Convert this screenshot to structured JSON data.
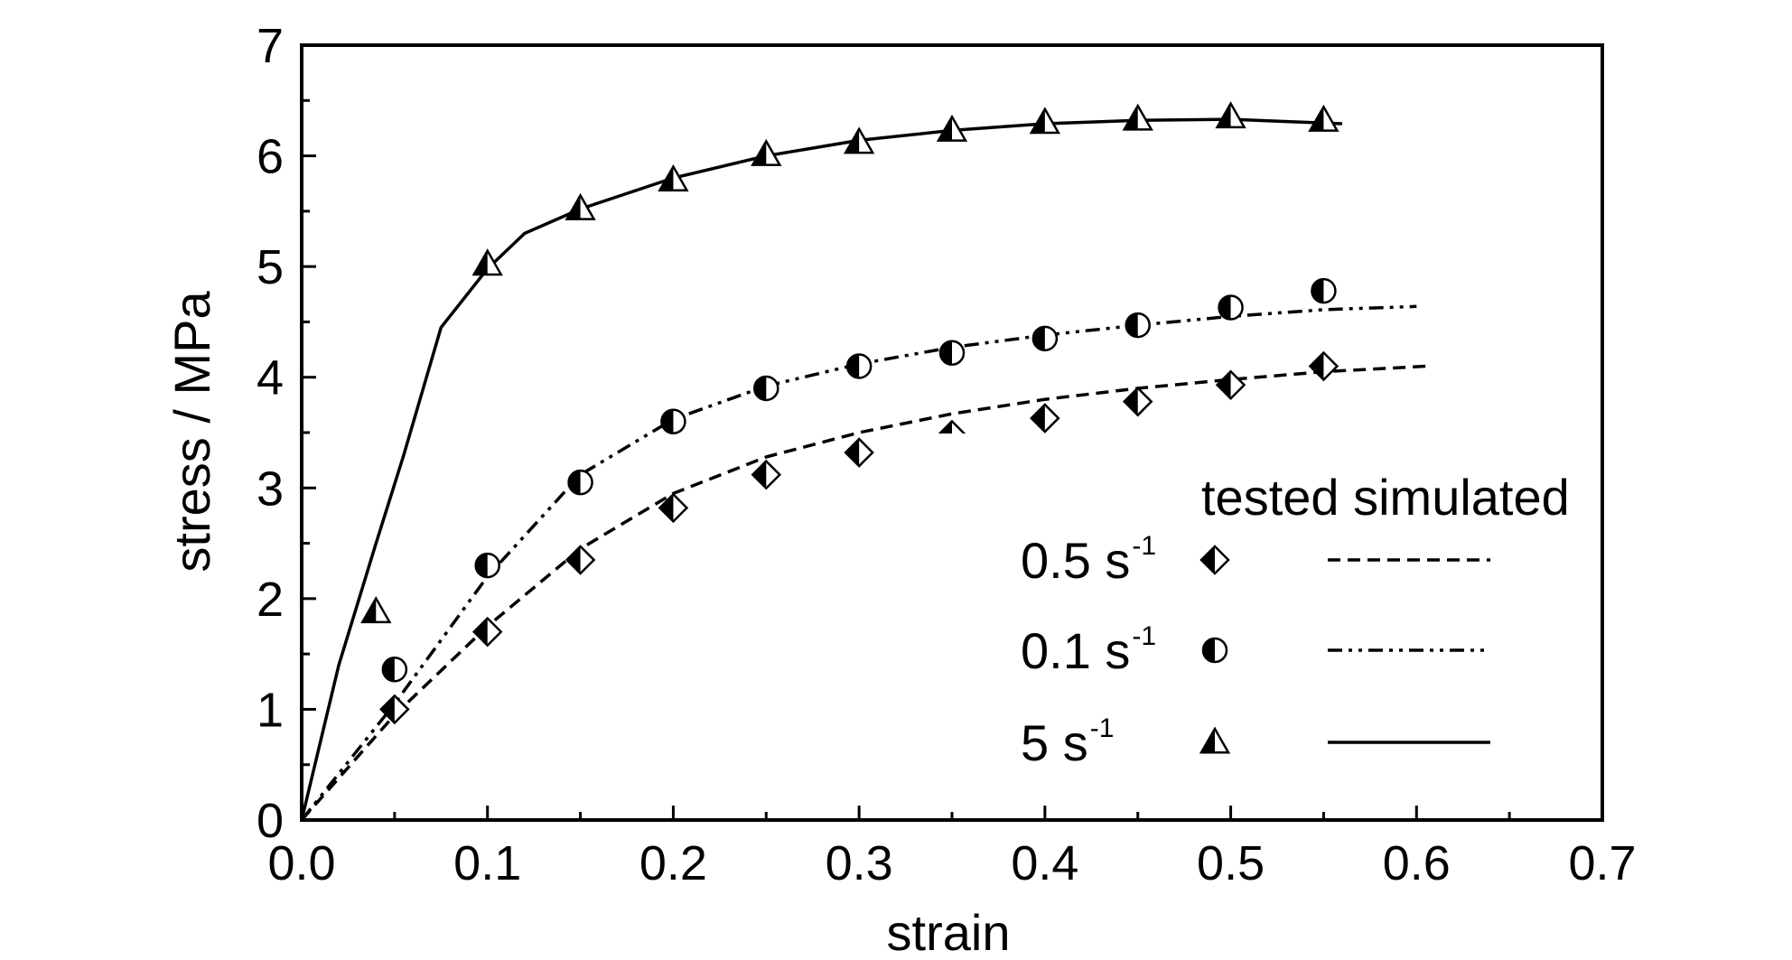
{
  "chart_data": {
    "type": "line",
    "xlabel": "strain",
    "ylabel": "stress / MPa",
    "xlim": [
      0,
      0.7
    ],
    "ylim": [
      0,
      7
    ],
    "x_ticks": [
      "0.0",
      "0.1",
      "0.2",
      "0.3",
      "0.4",
      "0.5",
      "0.6",
      "0.7"
    ],
    "y_ticks": [
      "0",
      "1",
      "2",
      "3",
      "4",
      "5",
      "6",
      "7"
    ],
    "grid": false,
    "legend": {
      "placement": "bottom-right",
      "header": "tested simulated",
      "unit": "s",
      "unit_exp": "-1",
      "entries": [
        {
          "label": "0.5",
          "marker": "half-filled-diamond",
          "line": "dashed"
        },
        {
          "label": "0.1",
          "marker": "half-filled-circle",
          "line": "dash-dot-dot"
        },
        {
          "label": "5",
          "marker": "half-filled-triangle",
          "line": "solid"
        }
      ]
    },
    "series": [
      {
        "rate": "0.5",
        "marker": "half-filled-diamond",
        "line": "dashed",
        "tested": [
          [
            0.05,
            1.0
          ],
          [
            0.1,
            1.7
          ],
          [
            0.15,
            2.35
          ],
          [
            0.2,
            2.82
          ],
          [
            0.25,
            3.12
          ],
          [
            0.3,
            3.32
          ],
          [
            0.35,
            3.48
          ],
          [
            0.4,
            3.63
          ],
          [
            0.45,
            3.78
          ],
          [
            0.5,
            3.93
          ],
          [
            0.55,
            4.1
          ]
        ],
        "simulated": [
          [
            0,
            0
          ],
          [
            0.05,
            0.95
          ],
          [
            0.1,
            1.75
          ],
          [
            0.15,
            2.45
          ],
          [
            0.2,
            2.95
          ],
          [
            0.25,
            3.28
          ],
          [
            0.3,
            3.5
          ],
          [
            0.35,
            3.67
          ],
          [
            0.4,
            3.8
          ],
          [
            0.45,
            3.9
          ],
          [
            0.5,
            3.98
          ],
          [
            0.55,
            4.05
          ],
          [
            0.605,
            4.1
          ]
        ]
      },
      {
        "rate": "0.1",
        "marker": "half-filled-circle",
        "line": "dash-dot-dot",
        "tested": [
          [
            0.05,
            1.36
          ],
          [
            0.1,
            2.3
          ],
          [
            0.15,
            3.05
          ],
          [
            0.2,
            3.6
          ],
          [
            0.25,
            3.9
          ],
          [
            0.3,
            4.1
          ],
          [
            0.35,
            4.22
          ],
          [
            0.4,
            4.35
          ],
          [
            0.45,
            4.47
          ],
          [
            0.5,
            4.63
          ],
          [
            0.55,
            4.78
          ]
        ],
        "simulated": [
          [
            0,
            0
          ],
          [
            0.05,
            1.05
          ],
          [
            0.1,
            2.2
          ],
          [
            0.15,
            3.12
          ],
          [
            0.2,
            3.62
          ],
          [
            0.25,
            3.92
          ],
          [
            0.3,
            4.12
          ],
          [
            0.35,
            4.27
          ],
          [
            0.4,
            4.38
          ],
          [
            0.45,
            4.47
          ],
          [
            0.5,
            4.55
          ],
          [
            0.55,
            4.61
          ],
          [
            0.6,
            4.64
          ]
        ]
      },
      {
        "rate": "5",
        "marker": "half-filled-triangle",
        "line": "solid",
        "tested": [
          [
            0.04,
            1.88
          ],
          [
            0.1,
            5.02
          ],
          [
            0.15,
            5.52
          ],
          [
            0.2,
            5.78
          ],
          [
            0.25,
            6.01
          ],
          [
            0.3,
            6.12
          ],
          [
            0.35,
            6.23
          ],
          [
            0.4,
            6.3
          ],
          [
            0.45,
            6.33
          ],
          [
            0.5,
            6.35
          ],
          [
            0.55,
            6.32
          ]
        ],
        "simulated": [
          [
            0,
            0
          ],
          [
            0.02,
            1.4
          ],
          [
            0.04,
            2.5
          ],
          [
            0.055,
            3.3
          ],
          [
            0.075,
            4.45
          ],
          [
            0.1,
            4.98
          ],
          [
            0.12,
            5.3
          ],
          [
            0.15,
            5.52
          ],
          [
            0.2,
            5.8
          ],
          [
            0.25,
            6.0
          ],
          [
            0.3,
            6.14
          ],
          [
            0.35,
            6.23
          ],
          [
            0.4,
            6.29
          ],
          [
            0.45,
            6.32
          ],
          [
            0.5,
            6.33
          ],
          [
            0.56,
            6.29
          ]
        ]
      }
    ]
  }
}
